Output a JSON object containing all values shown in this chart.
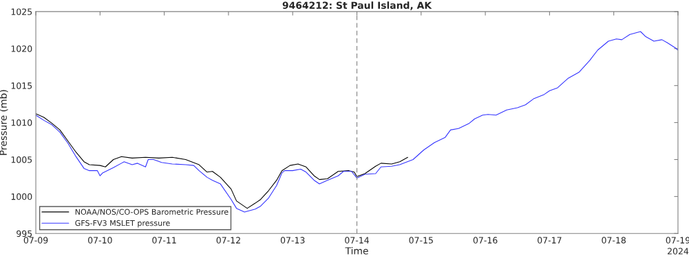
{
  "chart_data": {
    "type": "line",
    "title": "9464212: St Paul Island, AK",
    "xlabel": "Time",
    "ylabel": "Pressure (mb)",
    "annotations": [
      "2024"
    ],
    "xlim": [
      "2024-07-09",
      "2024-07-19"
    ],
    "xticks": [
      {
        "value": "2024-07-09",
        "label": "07-09"
      },
      {
        "value": "2024-07-10",
        "label": "07-10"
      },
      {
        "value": "2024-07-11",
        "label": "07-11"
      },
      {
        "value": "2024-07-12",
        "label": "07-12"
      },
      {
        "value": "2024-07-13",
        "label": "07-13"
      },
      {
        "value": "2024-07-14",
        "label": "07-14"
      },
      {
        "value": "2024-07-15",
        "label": "07-15"
      },
      {
        "value": "2024-07-16",
        "label": "07-16"
      },
      {
        "value": "2024-07-17",
        "label": "07-17"
      },
      {
        "value": "2024-07-18",
        "label": "07-18"
      },
      {
        "value": "2024-07-19",
        "label": "07-19"
      }
    ],
    "ylim": [
      995,
      1025
    ],
    "yticks": [
      995,
      1000,
      1005,
      1010,
      1015,
      1020,
      1025
    ],
    "grid": false,
    "legend": "bottom left",
    "line_style": "solid",
    "marker": "none",
    "ref_lines": [
      {
        "axis": "x",
        "value": "2024-07-14",
        "color": "#808080",
        "line_style": "dashed"
      }
    ],
    "series": [
      {
        "name": "NOAA/NOS/CO-OPS Barometric Pressure",
        "color": "#000000",
        "x": [
          "2024-07-09T00:00",
          "2024-07-09T03:00",
          "2024-07-09T06:00",
          "2024-07-09T09:00",
          "2024-07-09T12:00",
          "2024-07-09T15:00",
          "2024-07-09T18:00",
          "2024-07-09T20:00",
          "2024-07-10T00:00",
          "2024-07-10T02:00",
          "2024-07-10T05:00",
          "2024-07-10T08:00",
          "2024-07-10T12:00",
          "2024-07-10T17:00",
          "2024-07-10T22:00",
          "2024-07-11T03:00",
          "2024-07-11T08:00",
          "2024-07-11T13:00",
          "2024-07-11T16:00",
          "2024-07-11T18:00",
          "2024-07-11T21:00",
          "2024-07-12T01:00",
          "2024-07-12T03:00",
          "2024-07-12T07:00",
          "2024-07-12T10:00",
          "2024-07-12T12:00",
          "2024-07-12T15:00",
          "2024-07-12T18:00",
          "2024-07-12T20:00",
          "2024-07-12T23:00",
          "2024-07-13T02:00",
          "2024-07-13T05:00",
          "2024-07-13T08:00",
          "2024-07-13T10:00",
          "2024-07-13T13:00",
          "2024-07-13T17:00",
          "2024-07-13T21:00",
          "2024-07-13T23:00",
          "2024-07-14T00:00",
          "2024-07-14T03:00",
          "2024-07-14T07:00",
          "2024-07-14T09:00",
          "2024-07-14T13:00",
          "2024-07-14T16:00",
          "2024-07-14T19:00"
        ],
        "values": [
          1011.2,
          1010.7,
          1009.9,
          1009.0,
          1007.5,
          1006.0,
          1004.7,
          1004.3,
          1004.2,
          1004.0,
          1005.0,
          1005.4,
          1005.2,
          1005.3,
          1005.2,
          1005.3,
          1005.0,
          1004.3,
          1003.3,
          1003.4,
          1002.6,
          1001.0,
          999.4,
          998.4,
          999.1,
          999.6,
          1000.8,
          1002.2,
          1003.5,
          1004.2,
          1004.4,
          1004.0,
          1002.8,
          1002.3,
          1002.4,
          1003.4,
          1003.5,
          1003.3,
          1002.7,
          1003.1,
          1004.1,
          1004.5,
          1004.4,
          1004.7,
          1005.3
        ]
      },
      {
        "name": "GFS-FV3 MSLET pressure",
        "color": "#3333ff",
        "x": [
          "2024-07-09T00:00",
          "2024-07-09T03:00",
          "2024-07-09T06:00",
          "2024-07-09T09:00",
          "2024-07-09T12:00",
          "2024-07-09T15:00",
          "2024-07-09T18:00",
          "2024-07-09T20:00",
          "2024-07-09T23:00",
          "2024-07-10T00:00",
          "2024-07-10T01:00",
          "2024-07-10T05:00",
          "2024-07-10T08:00",
          "2024-07-10T09:00",
          "2024-07-10T12:00",
          "2024-07-10T14:00",
          "2024-07-10T17:00",
          "2024-07-10T18:00",
          "2024-07-10T20:00",
          "2024-07-10T23:00",
          "2024-07-11T03:00",
          "2024-07-11T08:00",
          "2024-07-11T11:00",
          "2024-07-11T13:00",
          "2024-07-11T16:00",
          "2024-07-11T18:00",
          "2024-07-11T21:00",
          "2024-07-12T01:00",
          "2024-07-12T03:00",
          "2024-07-12T06:00",
          "2024-07-12T10:00",
          "2024-07-12T12:00",
          "2024-07-12T15:00",
          "2024-07-12T18:00",
          "2024-07-12T20:00",
          "2024-07-12T21:00",
          "2024-07-13T00:00",
          "2024-07-13T03:00",
          "2024-07-13T05:00",
          "2024-07-13T08:00",
          "2024-07-13T10:00",
          "2024-07-13T13:00",
          "2024-07-13T17:00",
          "2024-07-13T19:00",
          "2024-07-13T22:00",
          "2024-07-14T00:00",
          "2024-07-14T03:00",
          "2024-07-14T07:00",
          "2024-07-14T09:00",
          "2024-07-14T13:00",
          "2024-07-14T16:00",
          "2024-07-14T21:00",
          "2024-07-15T01:00",
          "2024-07-15T05:00",
          "2024-07-15T09:00",
          "2024-07-15T11:00",
          "2024-07-15T14:00",
          "2024-07-15T18:00",
          "2024-07-15T20:00",
          "2024-07-15T23:00",
          "2024-07-16T01:00",
          "2024-07-16T04:00",
          "2024-07-16T08:00",
          "2024-07-16T12:00",
          "2024-07-16T15:00",
          "2024-07-16T18:00",
          "2024-07-16T22:00",
          "2024-07-17T00:00",
          "2024-07-17T03:00",
          "2024-07-17T07:00",
          "2024-07-17T11:00",
          "2024-07-17T15:00",
          "2024-07-17T18:00",
          "2024-07-17T22:00",
          "2024-07-18T01:00",
          "2024-07-18T03:00",
          "2024-07-18T06:00",
          "2024-07-18T10:00",
          "2024-07-18T12:00",
          "2024-07-18T15:00",
          "2024-07-18T18:00",
          "2024-07-18T20:00",
          "2024-07-18T23:00",
          "2024-07-19T00:00"
        ],
        "values": [
          1011.0,
          1010.3,
          1009.7,
          1008.7,
          1007.2,
          1005.4,
          1003.8,
          1003.5,
          1003.5,
          1002.8,
          1003.2,
          1003.9,
          1004.5,
          1004.7,
          1004.3,
          1004.5,
          1004.0,
          1005.0,
          1005.0,
          1004.6,
          1004.4,
          1004.3,
          1004.2,
          1003.5,
          1002.6,
          1002.2,
          1001.7,
          999.6,
          998.4,
          997.9,
          998.3,
          998.7,
          999.8,
          1001.5,
          1003.2,
          1003.5,
          1003.5,
          1003.7,
          1003.3,
          1002.2,
          1001.7,
          1002.2,
          1002.8,
          1003.4,
          1003.4,
          1002.5,
          1003.0,
          1003.1,
          1004.0,
          1004.1,
          1004.3,
          1005.0,
          1006.3,
          1007.3,
          1008.0,
          1009.0,
          1009.2,
          1009.9,
          1010.5,
          1011.0,
          1011.1,
          1011.0,
          1011.7,
          1012.0,
          1012.4,
          1013.2,
          1013.8,
          1014.3,
          1014.7,
          1016.0,
          1016.8,
          1018.4,
          1019.8,
          1021.0,
          1021.3,
          1021.2,
          1021.9,
          1022.3,
          1021.6,
          1021.0,
          1021.2,
          1020.8,
          1020.1,
          1019.8
        ]
      }
    ]
  }
}
